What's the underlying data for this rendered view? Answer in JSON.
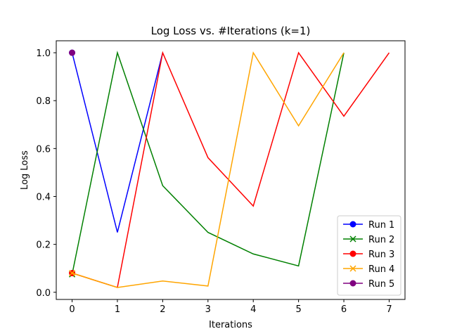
{
  "chart_data": {
    "type": "line",
    "title": "Log Loss vs. #Iterations (k=1)",
    "xlabel": "Iterations",
    "ylabel": "Log Loss",
    "xlim": [
      -0.35,
      7.35
    ],
    "ylim": [
      -0.03,
      1.05
    ],
    "xticks": [
      0,
      1,
      2,
      3,
      4,
      5,
      6,
      7
    ],
    "yticks": [
      0.0,
      0.2,
      0.4,
      0.6,
      0.8,
      1.0
    ],
    "grid": false,
    "legend_position": "bottom-right",
    "series": [
      {
        "name": "Run 1",
        "color": "#0000ff",
        "marker": "circle",
        "x": [
          0,
          1,
          2
        ],
        "y": [
          1.0,
          0.25,
          1.0
        ]
      },
      {
        "name": "Run 2",
        "color": "#008000",
        "marker": "x",
        "x": [
          0,
          1,
          2,
          3,
          4,
          5,
          6
        ],
        "y": [
          0.075,
          1.0,
          0.445,
          0.25,
          0.16,
          0.11,
          1.0
        ]
      },
      {
        "name": "Run 3",
        "color": "#ff0000",
        "marker": "circle",
        "x": [
          0,
          1,
          2,
          3,
          4,
          5,
          6,
          7
        ],
        "y": [
          0.08,
          0.02,
          1.0,
          0.562,
          0.36,
          1.0,
          0.735,
          1.0
        ]
      },
      {
        "name": "Run 4",
        "color": "#ffa500",
        "marker": "x",
        "x": [
          0,
          1,
          2,
          3,
          4,
          5,
          6
        ],
        "y": [
          0.08,
          0.02,
          0.047,
          0.026,
          1.0,
          0.695,
          1.0
        ]
      },
      {
        "name": "Run 5",
        "color": "#800080",
        "marker": "circle",
        "x": [
          0
        ],
        "y": [
          1.0
        ]
      }
    ]
  }
}
